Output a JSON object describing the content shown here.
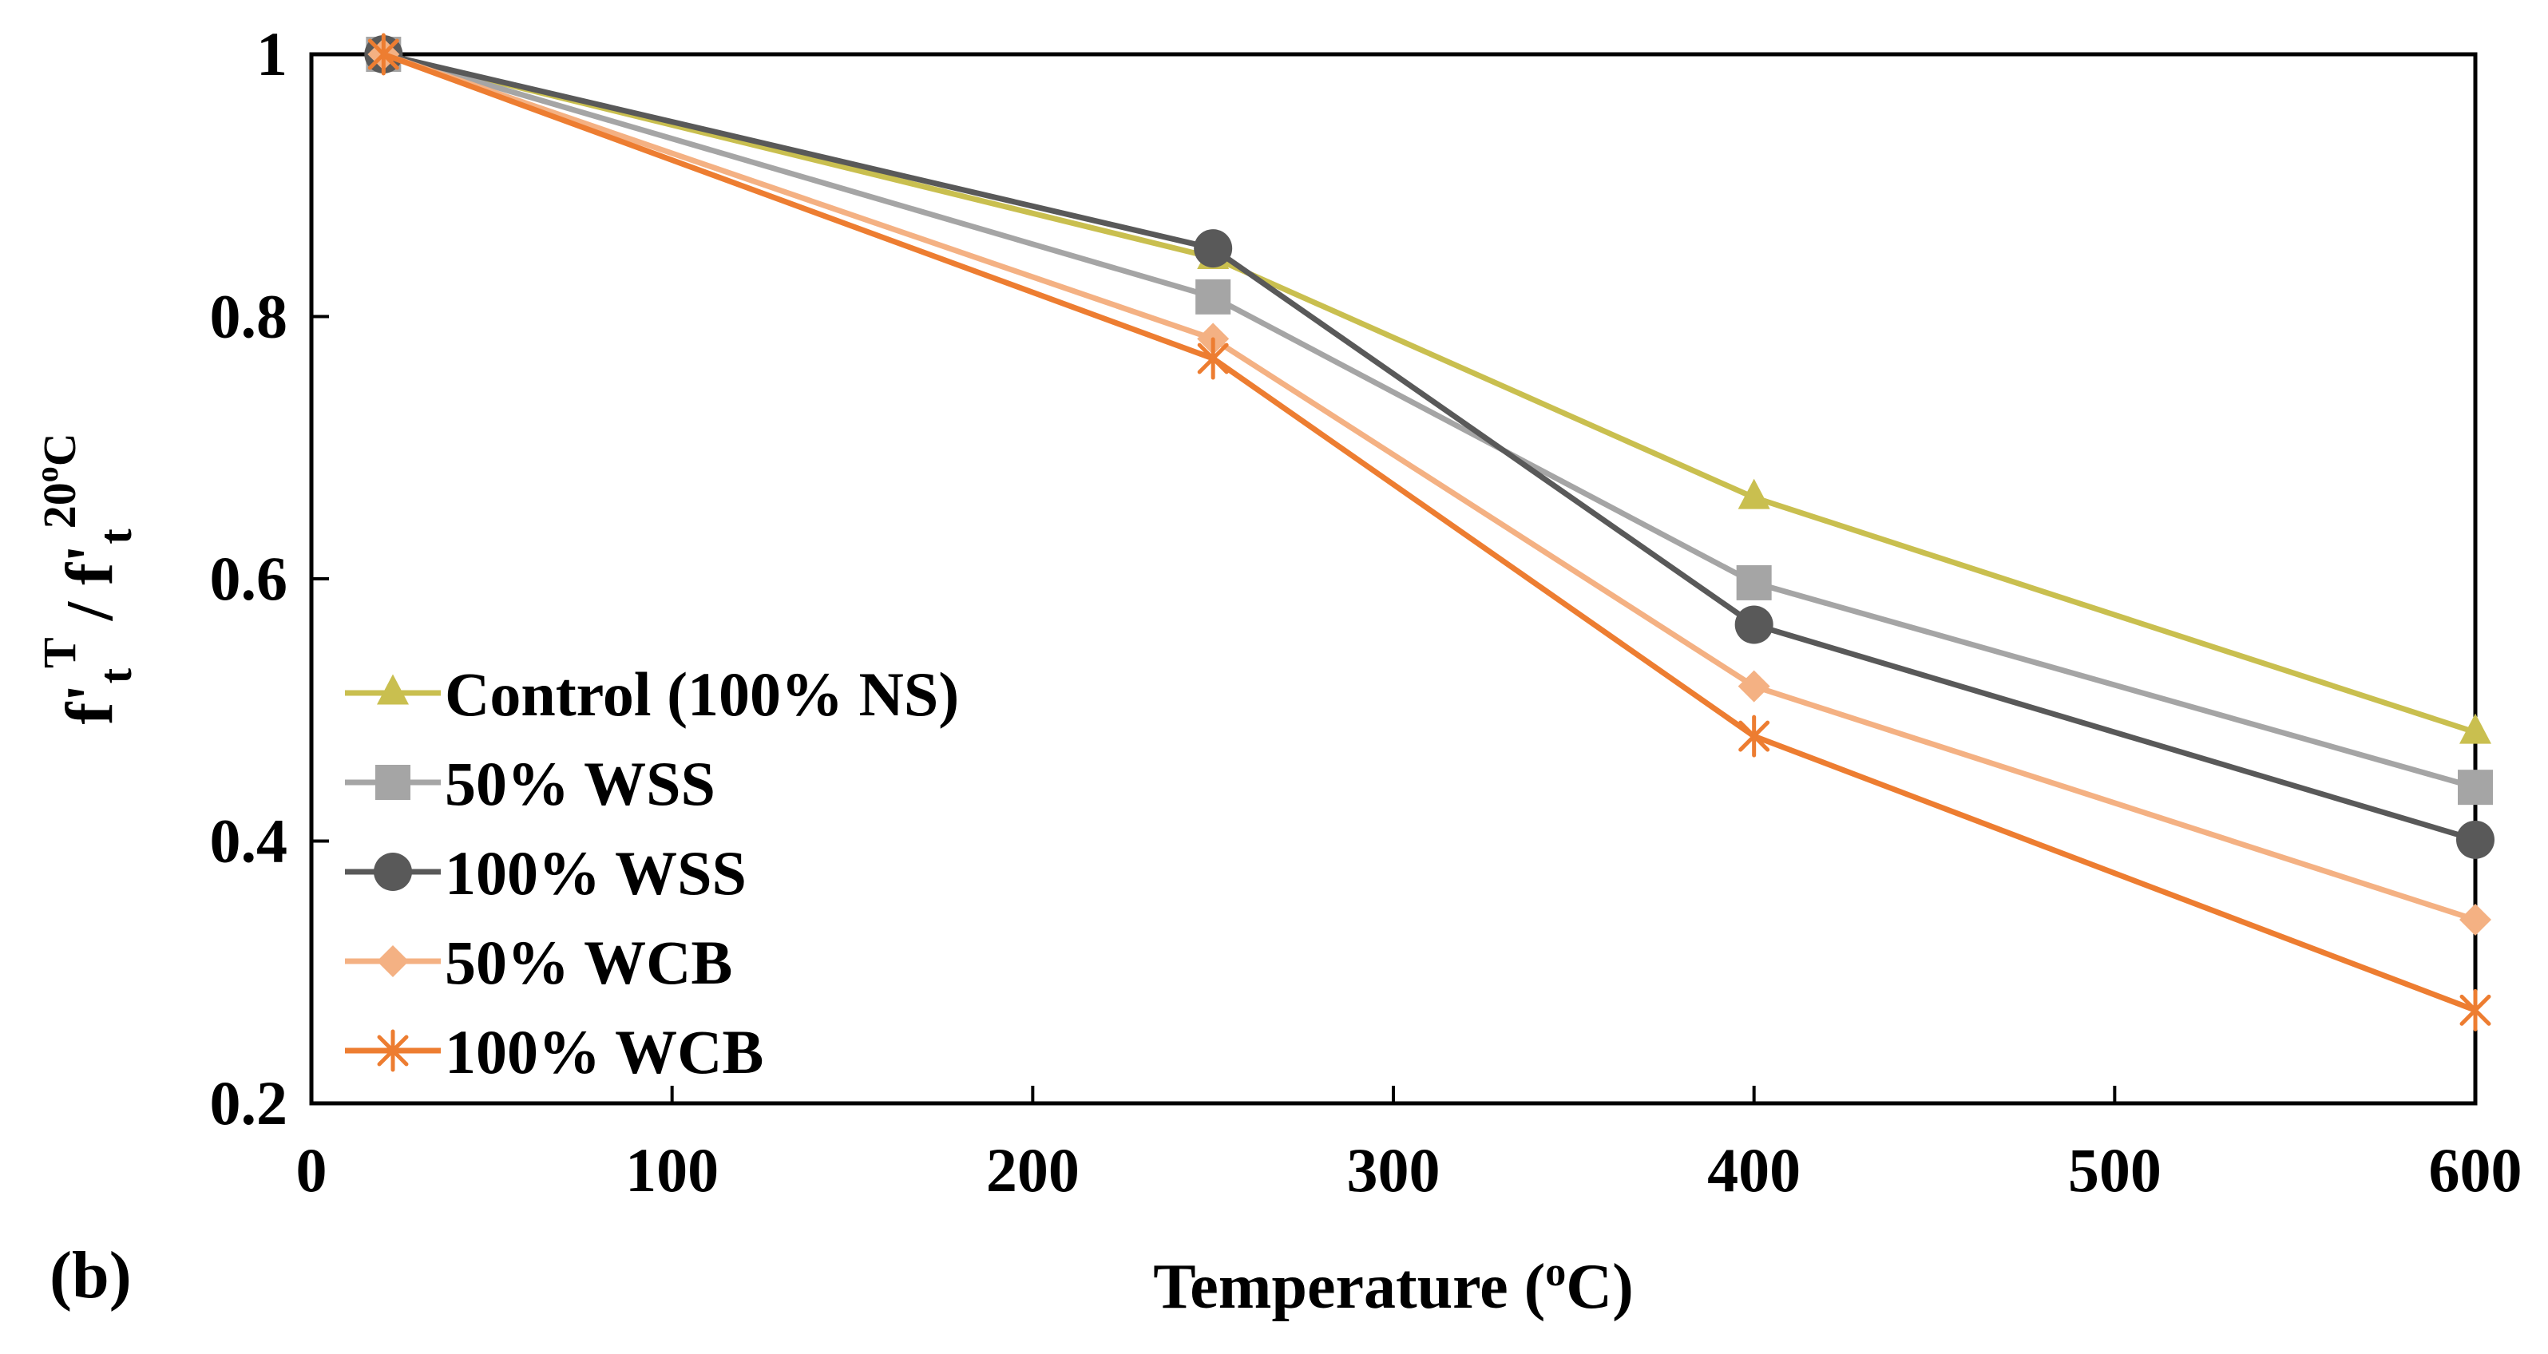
{
  "panel_label": "(b)",
  "chart_data": {
    "type": "line",
    "title": "",
    "xlabel": {
      "text": "Temperature (",
      "sup": "o",
      "tail": "C)"
    },
    "ylabel": {
      "base1": "f",
      "prime1": "'",
      "sub1": "t",
      "sup1": "T",
      "slash": " / ",
      "base2": "f",
      "prime2": "'",
      "sub2": "t",
      "sup2": "20",
      "sup2o": "o",
      "sup2c": "C"
    },
    "xlim": [
      0,
      600
    ],
    "ylim": [
      0.2,
      1.0
    ],
    "xticks": [
      0,
      100,
      200,
      300,
      400,
      500,
      600
    ],
    "yticks": [
      0.2,
      0.4,
      0.6,
      0.8,
      1.0
    ],
    "xtick_labels": [
      "0",
      "100",
      "200",
      "300",
      "400",
      "500",
      "600"
    ],
    "ytick_labels": [
      "0.2",
      "0.4",
      "0.6",
      "0.8",
      "1"
    ],
    "grid": false,
    "legend_position": "bottom-left",
    "x": [
      20,
      250,
      400,
      600
    ],
    "series": [
      {
        "name": "Control (100% NS)",
        "values": [
          1.0,
          0.845,
          0.662,
          0.483
        ],
        "color": "#C9BF4F",
        "marker": "triangle"
      },
      {
        "name": "50% WSS",
        "values": [
          1.0,
          0.815,
          0.597,
          0.441
        ],
        "color": "#A5A5A5",
        "marker": "square"
      },
      {
        "name": "100% WSS",
        "values": [
          1.0,
          0.852,
          0.565,
          0.401
        ],
        "color": "#595959",
        "marker": "circle"
      },
      {
        "name": "50% WCB",
        "values": [
          1.0,
          0.783,
          0.518,
          0.34
        ],
        "color": "#F4B183",
        "marker": "diamond"
      },
      {
        "name": "100% WCB",
        "values": [
          1.0,
          0.768,
          0.48,
          0.271
        ],
        "color": "#ED7D31",
        "marker": "asterisk"
      }
    ]
  }
}
